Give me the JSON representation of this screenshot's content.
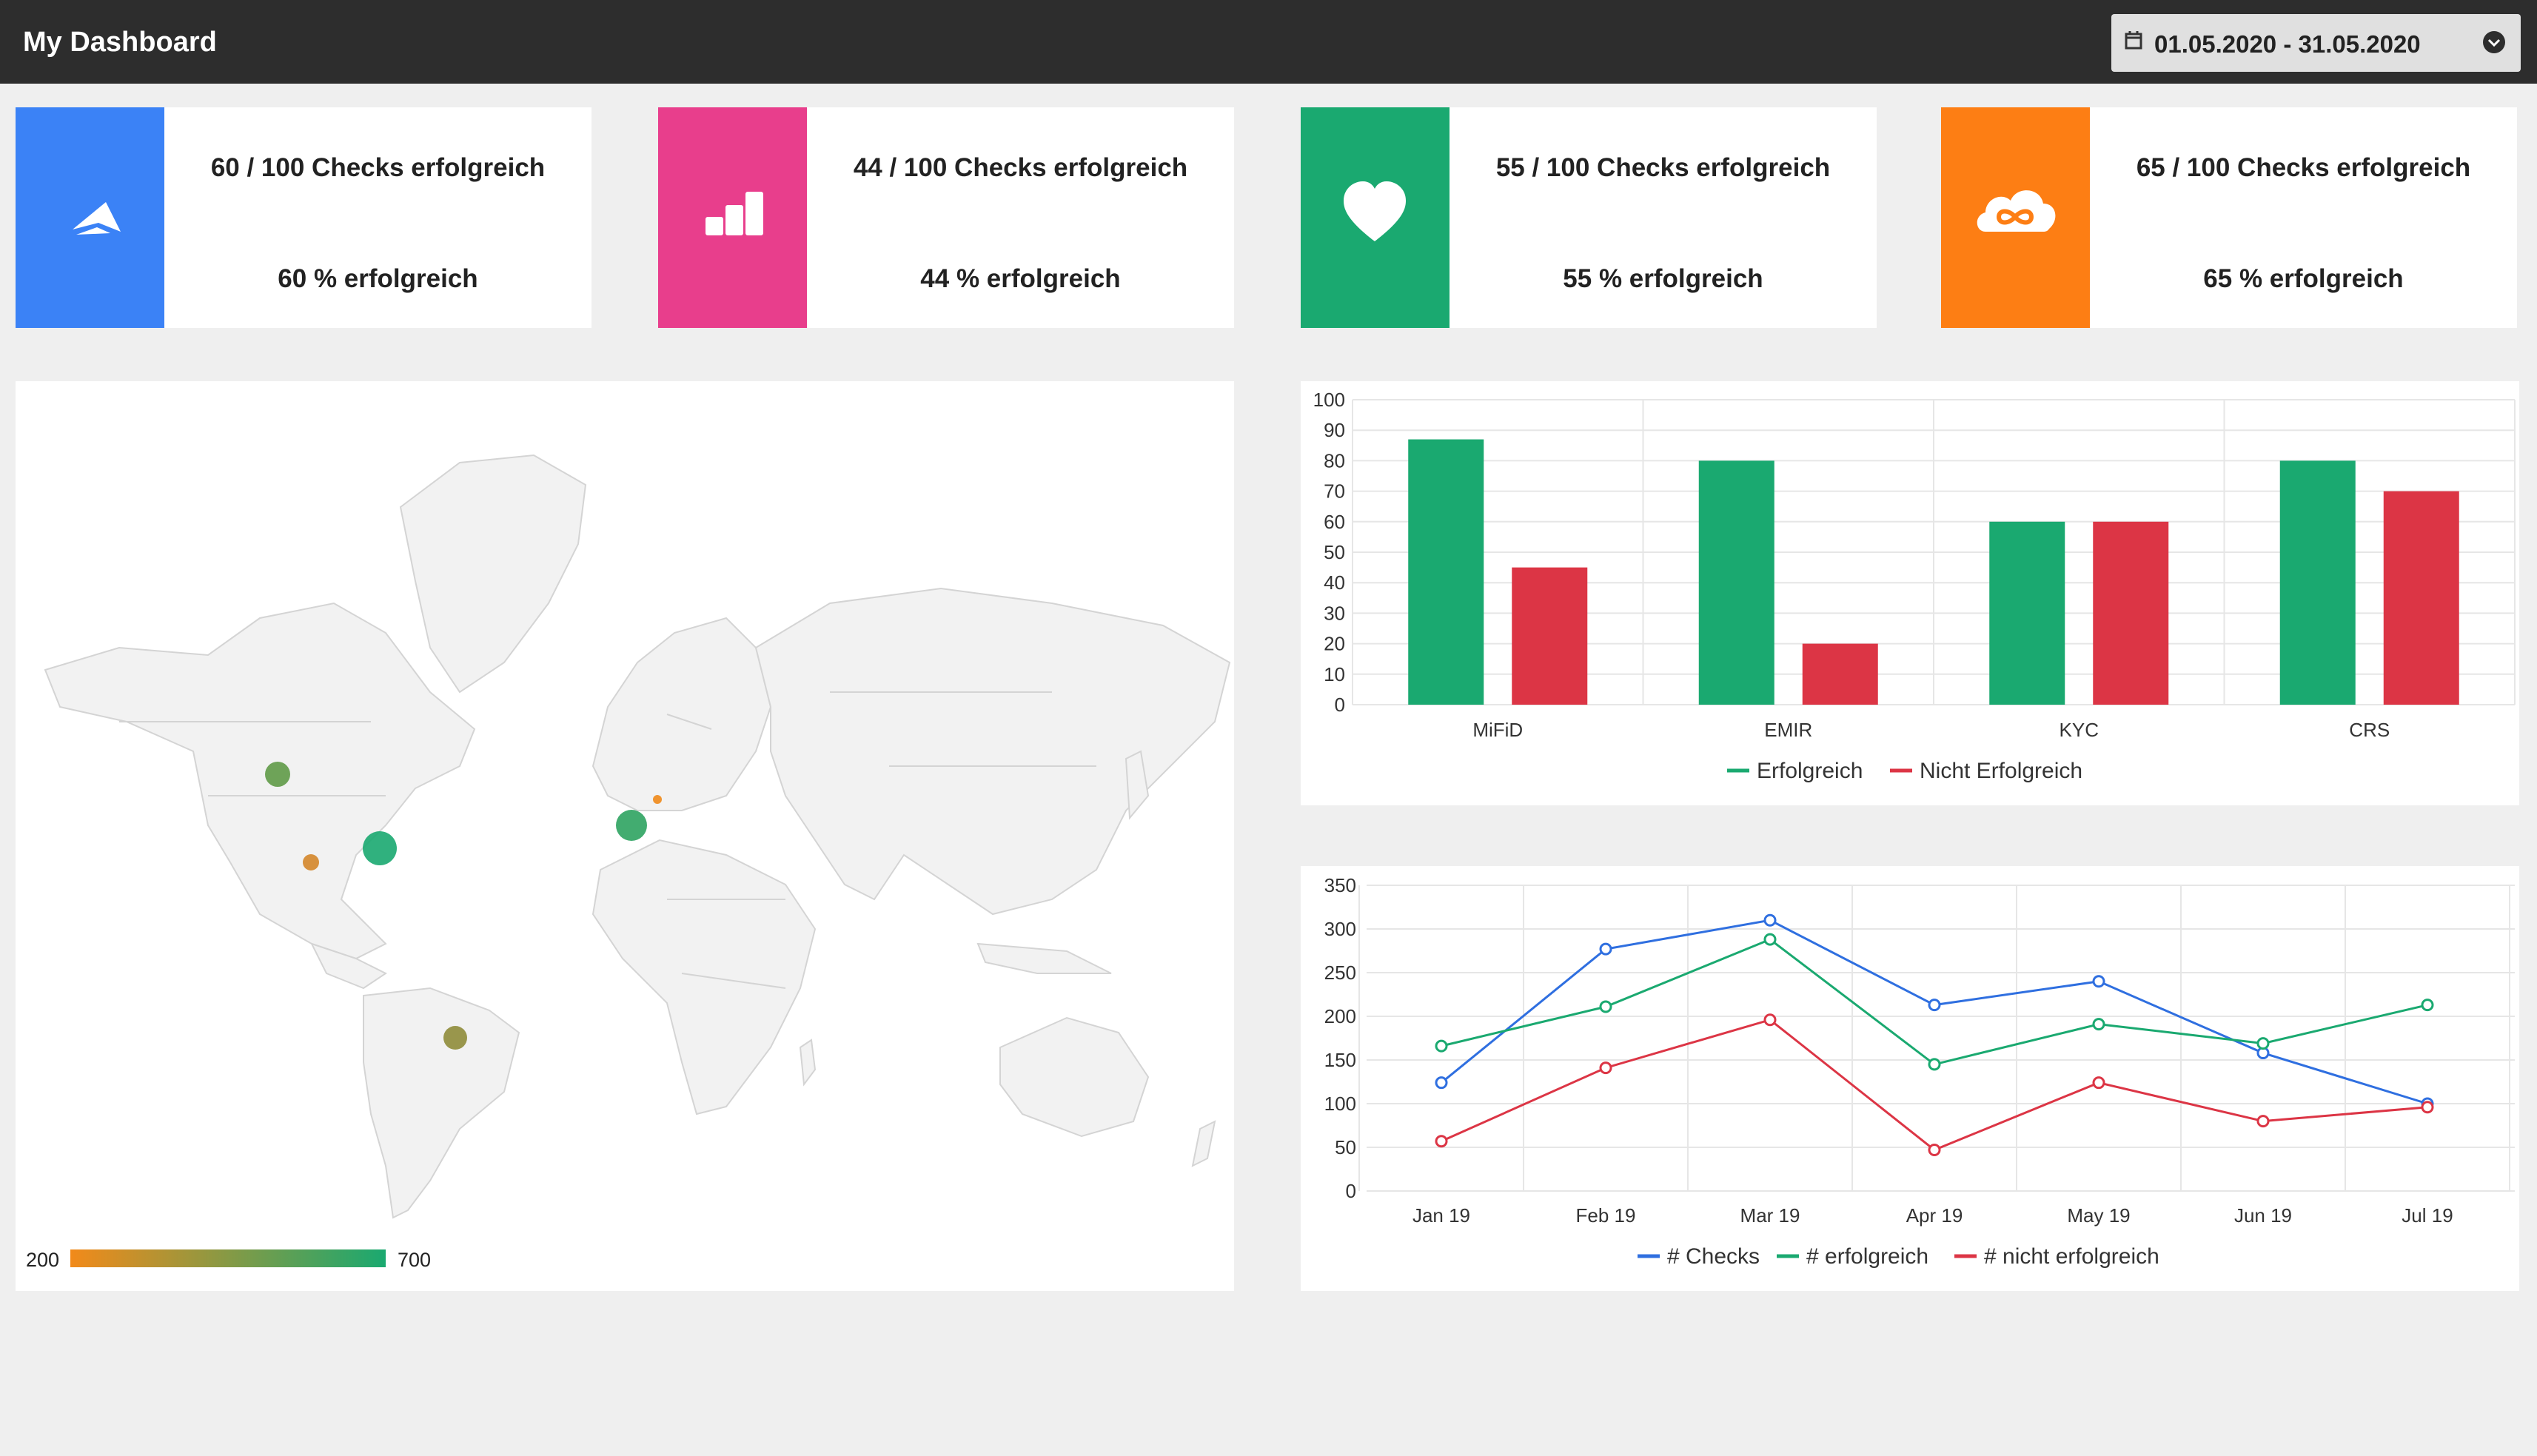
{
  "header": {
    "title": "My Dashboard",
    "date_range": "01.05.2020 - 31.05.2020"
  },
  "cards": [
    {
      "icon": "paper-plane-icon",
      "color": "#3b82f6",
      "checks": "60 / 100 Checks erfolgreich",
      "percent": "60 % erfolgreich"
    },
    {
      "icon": "bar-chart-icon",
      "color": "#e83e8c",
      "checks": "44 / 100 Checks erfolgreich",
      "percent": "44 % erfolgreich"
    },
    {
      "icon": "heart-icon",
      "color": "#1aa970",
      "checks": "55 / 100 Checks erfolgreich",
      "percent": "55 % erfolgreich"
    },
    {
      "icon": "cloud-infinity-icon",
      "color": "#fd7e14",
      "checks": "65 / 100 Checks erfolgreich",
      "percent": "65 % erfolgreich"
    }
  ],
  "map": {
    "legend_min": "200",
    "legend_max": "700",
    "gradient_start": "#f28a1a",
    "gradient_end": "#1aa970"
  },
  "chart_data": [
    {
      "type": "bar",
      "categories": [
        "MiFiD",
        "EMIR",
        "KYC",
        "CRS"
      ],
      "series": [
        {
          "name": "Erfolgreich",
          "color": "#1aa970",
          "values": [
            87,
            80,
            60,
            80
          ]
        },
        {
          "name": "Nicht Erfolgreich",
          "color": "#dc3545",
          "values": [
            45,
            20,
            60,
            70
          ]
        }
      ],
      "ylim": [
        0,
        100
      ],
      "yticks": [
        0,
        10,
        20,
        30,
        40,
        50,
        60,
        70,
        80,
        90,
        100
      ],
      "grid": true,
      "legend": "bottom"
    },
    {
      "type": "line",
      "categories": [
        "Jan 19",
        "Feb 19",
        "Mar 19",
        "Apr 19",
        "May 19",
        "Jun 19",
        "Jul 19"
      ],
      "series": [
        {
          "name": "# Checks",
          "color": "#2f6fe0",
          "values": [
            124,
            277,
            310,
            213,
            240,
            158,
            100
          ]
        },
        {
          "name": "# erfolgreich",
          "color": "#1aa970",
          "values": [
            166,
            211,
            288,
            145,
            191,
            169,
            213
          ]
        },
        {
          "name": "# nicht erfolgreich",
          "color": "#dc3545",
          "values": [
            57,
            141,
            196,
            47,
            124,
            80,
            96
          ]
        }
      ],
      "ylim": [
        0,
        350
      ],
      "yticks": [
        0,
        50,
        100,
        150,
        200,
        250,
        300,
        350
      ],
      "grid": true,
      "legend": "bottom"
    }
  ]
}
